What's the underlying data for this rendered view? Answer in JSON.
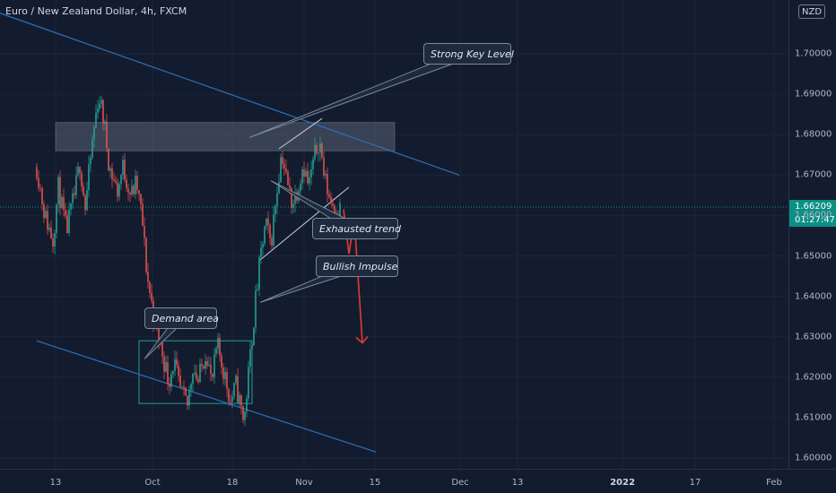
{
  "header": {
    "symbol": "Euro / New Zealand Dollar, 4h, FXCM",
    "currency": "NZD"
  },
  "price_tag": {
    "price": "1.66209",
    "countdown": "01:27:47"
  },
  "colors": {
    "background": "#131c2e",
    "up_candle": "#26a69a",
    "down_candle": "#ef5350",
    "channel_line": "#2f6fb8",
    "zone_fill": "#8a93a6",
    "arrow": "#e53935",
    "current_price_line": "#0b8f86"
  },
  "chart_data": {
    "type": "candlestick",
    "symbol": "EUR/NZD",
    "timeframe": "4h",
    "source": "FXCM",
    "ylim": [
      1.6,
      1.712
    ],
    "y_ticks": [
      "1.70000",
      "1.69000",
      "1.68000",
      "1.67000",
      "1.66000",
      "1.65000",
      "1.64000",
      "1.63000",
      "1.62000",
      "1.61000",
      "1.60000"
    ],
    "x_ticks": [
      "13",
      "Oct",
      "18",
      "Nov",
      "15",
      "Dec",
      "13",
      "2022",
      "17",
      "Feb"
    ],
    "x_ticks_bold": [
      "2022"
    ],
    "current_price": 1.66209,
    "price_path": [
      {
        "t": "Sep 06",
        "p": 1.672
      },
      {
        "t": "Sep 09",
        "p": 1.66
      },
      {
        "t": "Sep 12",
        "p": 1.654
      },
      {
        "t": "Sep 14",
        "p": 1.667
      },
      {
        "t": "Sep 17",
        "p": 1.656
      },
      {
        "t": "Sep 20",
        "p": 1.665
      },
      {
        "t": "Sep 22",
        "p": 1.673
      },
      {
        "t": "Sep 24",
        "p": 1.662
      },
      {
        "t": "Sep 27",
        "p": 1.68
      },
      {
        "t": "Sep 29",
        "p": 1.69
      },
      {
        "t": "Oct 01",
        "p": 1.683
      },
      {
        "t": "Oct 03",
        "p": 1.672
      },
      {
        "t": "Oct 06",
        "p": 1.666
      },
      {
        "t": "Oct 08",
        "p": 1.672
      },
      {
        "t": "Oct 11",
        "p": 1.665
      },
      {
        "t": "Oct 13",
        "p": 1.668
      },
      {
        "t": "Oct 15",
        "p": 1.66
      },
      {
        "t": "Oct 17",
        "p": 1.645
      },
      {
        "t": "Oct 20",
        "p": 1.633
      },
      {
        "t": "Oct 22",
        "p": 1.628
      },
      {
        "t": "Oct 25",
        "p": 1.619
      },
      {
        "t": "Oct 27",
        "p": 1.624
      },
      {
        "t": "Oct 29",
        "p": 1.617
      },
      {
        "t": "Nov 01",
        "p": 1.613
      },
      {
        "t": "Nov 03",
        "p": 1.623
      },
      {
        "t": "Nov 05",
        "p": 1.619
      },
      {
        "t": "Nov 08",
        "p": 1.627
      },
      {
        "t": "Nov 10",
        "p": 1.618
      },
      {
        "t": "Nov 12",
        "p": 1.628
      },
      {
        "t": "Nov 15",
        "p": 1.62
      },
      {
        "t": "Nov 17",
        "p": 1.614
      },
      {
        "t": "Nov 19",
        "p": 1.618
      },
      {
        "t": "Nov 22",
        "p": 1.609
      },
      {
        "t": "Nov 24",
        "p": 1.623
      },
      {
        "t": "Nov 26",
        "p": 1.637
      },
      {
        "t": "Nov 28",
        "p": 1.649
      },
      {
        "t": "Nov 30",
        "p": 1.658
      },
      {
        "t": "Dec 02",
        "p": 1.653
      },
      {
        "t": "Dec 04",
        "p": 1.665
      },
      {
        "t": "Dec 06",
        "p": 1.676
      },
      {
        "t": "Dec 08",
        "p": 1.668
      },
      {
        "t": "Dec 10",
        "p": 1.663
      },
      {
        "t": "Dec 12",
        "p": 1.667
      },
      {
        "t": "Dec 14",
        "p": 1.673
      },
      {
        "t": "Dec 16",
        "p": 1.667
      },
      {
        "t": "Dec 18",
        "p": 1.674
      },
      {
        "t": "Dec 20",
        "p": 1.679
      },
      {
        "t": "Dec 22",
        "p": 1.669
      },
      {
        "t": "Dec 24",
        "p": 1.664
      },
      {
        "t": "Dec 27",
        "p": 1.661
      },
      {
        "t": "Dec 28",
        "p": 1.662
      }
    ],
    "zones": [
      {
        "type": "resistance",
        "t_start": "Sep 13",
        "t_end": "Jan 17",
        "p_low": 1.676,
        "p_high": 1.683
      },
      {
        "type": "demand",
        "t_start": "Oct 14",
        "t_end": "Nov 25",
        "p_low": 1.6135,
        "p_high": 1.629
      }
    ],
    "trendlines": [
      {
        "role": "channel-upper",
        "from": {
          "t": "Aug 15",
          "p": 1.712
        },
        "to": {
          "t": "Feb 10",
          "p": 1.67
        }
      },
      {
        "role": "channel-lower",
        "from": {
          "t": "Sep 06",
          "p": 1.629
        },
        "to": {
          "t": "Jan 10",
          "p": 1.6015
        }
      },
      {
        "role": "rising-lower",
        "from": {
          "t": "Nov 28",
          "p": 1.649
        },
        "to": {
          "t": "Dec 31",
          "p": 1.667
        }
      },
      {
        "role": "rising-upper",
        "from": {
          "t": "Dec 05",
          "p": 1.6765
        },
        "to": {
          "t": "Dec 21",
          "p": 1.684
        }
      }
    ],
    "forecast_arrow": [
      {
        "t": "Dec 29",
        "p": 1.6615
      },
      {
        "t": "Dec 31",
        "p": 1.6505
      },
      {
        "t": "Jan 02",
        "p": 1.659
      },
      {
        "t": "Jan 05",
        "p": 1.6285
      }
    ],
    "annotations": [
      {
        "text": "Strong Key Level",
        "pointer": {
          "t": "Nov 24",
          "p": 1.6793
        }
      },
      {
        "text": "Exhausted trend",
        "pointer": {
          "t": "Dec 02",
          "p": 1.6686
        }
      },
      {
        "text": "Bullish Impulse",
        "pointer": {
          "t": "Nov 28",
          "p": 1.6385
        }
      },
      {
        "text": "Demand area",
        "pointer": {
          "t": "Oct 16",
          "p": 1.6245
        }
      }
    ]
  }
}
